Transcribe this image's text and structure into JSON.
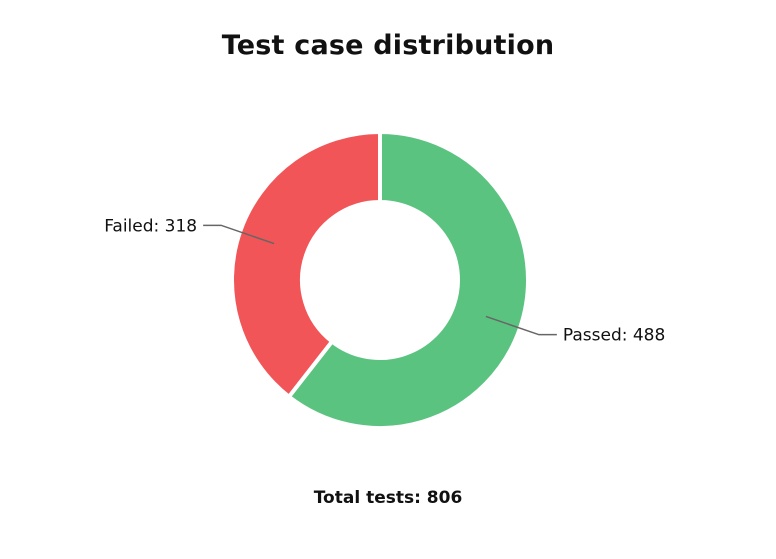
{
  "chart_data": {
    "type": "pie",
    "title": "Test case distribution",
    "donut": true,
    "slices": [
      {
        "label": "Passed",
        "value": 488,
        "color": "#5bc380"
      },
      {
        "label": "Failed",
        "value": 318,
        "color": "#f15557"
      }
    ],
    "total_text": "Total tests: 806",
    "total_value": 806
  }
}
